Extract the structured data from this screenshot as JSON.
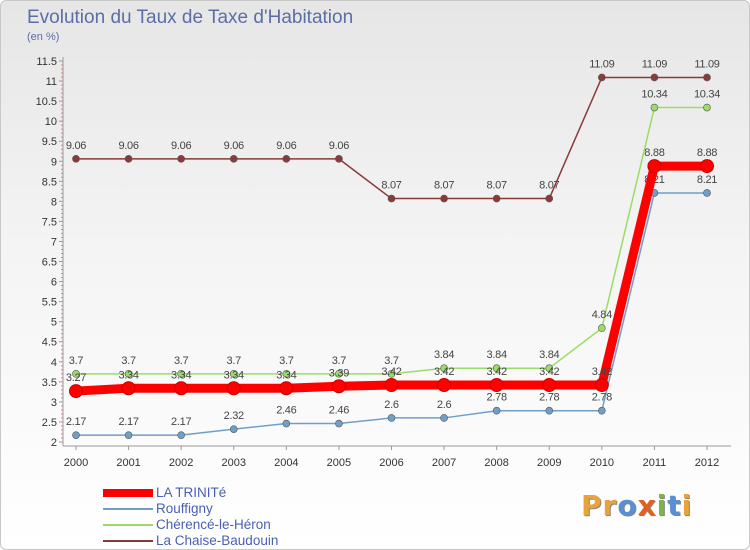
{
  "title": "Evolution du Taux de Taxe d'Habitation",
  "unit_label": "(en %)",
  "logo_text": "Proxiti",
  "chart_data": {
    "type": "line",
    "x": [
      "2000",
      "2001",
      "2002",
      "2003",
      "2004",
      "2005",
      "2006",
      "2007",
      "2008",
      "2009",
      "2010",
      "2011",
      "2012"
    ],
    "ylim": [
      2,
      11.5
    ],
    "yticks": [
      "2",
      "2.5",
      "3",
      "3.5",
      "4",
      "4.5",
      "5",
      "5.5",
      "6",
      "6.5",
      "7",
      "7.5",
      "8",
      "8.5",
      "9",
      "9.5",
      "10",
      "10.5",
      "11",
      "11.5"
    ],
    "grid": false,
    "legend_position": "bottom-left",
    "series": [
      {
        "name": "LA TRINITé",
        "color": "#ff0000",
        "values": [
          3.27,
          3.34,
          3.34,
          3.34,
          3.34,
          3.39,
          3.42,
          3.42,
          3.42,
          3.42,
          3.42,
          8.88,
          8.88
        ],
        "labels": [
          "3.27",
          "3.34",
          "3.34",
          "3.34",
          "3.34",
          "3.39",
          "3.42",
          "3.42",
          "3.42",
          "3.42",
          "3.42",
          "8.88",
          "8.88"
        ]
      },
      {
        "name": "Rouffigny",
        "color": "#6f9fc9",
        "values": [
          2.17,
          2.17,
          2.17,
          2.32,
          2.46,
          2.46,
          2.6,
          2.6,
          2.78,
          2.78,
          2.78,
          8.21,
          8.21
        ],
        "labels": [
          "2.17",
          "2.17",
          "2.17",
          "2.32",
          "2.46",
          "2.46",
          "2.6",
          "2.6",
          "2.78",
          "2.78",
          "2.78",
          "8.21",
          "8.21"
        ]
      },
      {
        "name": "Chérencé-le-Héron",
        "color": "#99dd66",
        "values": [
          3.7,
          3.7,
          3.7,
          3.7,
          3.7,
          3.7,
          3.7,
          3.84,
          3.84,
          3.84,
          4.84,
          10.34,
          10.34
        ],
        "labels": [
          "3.7",
          "3.7",
          "3.7",
          "3.7",
          "3.7",
          "3.7",
          "3.7",
          "3.84",
          "3.84",
          "3.84",
          "4.84",
          "10.34",
          "10.34"
        ]
      },
      {
        "name": "La Chaise-Baudouin",
        "color": "#8b3a3a",
        "values": [
          9.06,
          9.06,
          9.06,
          9.06,
          9.06,
          9.06,
          8.07,
          8.07,
          8.07,
          8.07,
          11.09,
          11.09,
          11.09
        ],
        "labels": [
          "9.06",
          "9.06",
          "9.06",
          "9.06",
          "9.06",
          "9.06",
          "8.07",
          "8.07",
          "8.07",
          "8.07",
          "11.09",
          "11.09",
          "11.09"
        ]
      }
    ]
  },
  "colors": {
    "axis": "#999999",
    "tick_text": "#333333",
    "title_text": "#5b6fa6",
    "legend_text": "#4a5fb5",
    "logo_letters": [
      "#e8a33a",
      "#e8a33a",
      "#5a8fd0",
      "#e06020",
      "#7ab648",
      "#5a8fd0",
      "#e8a33a"
    ]
  }
}
